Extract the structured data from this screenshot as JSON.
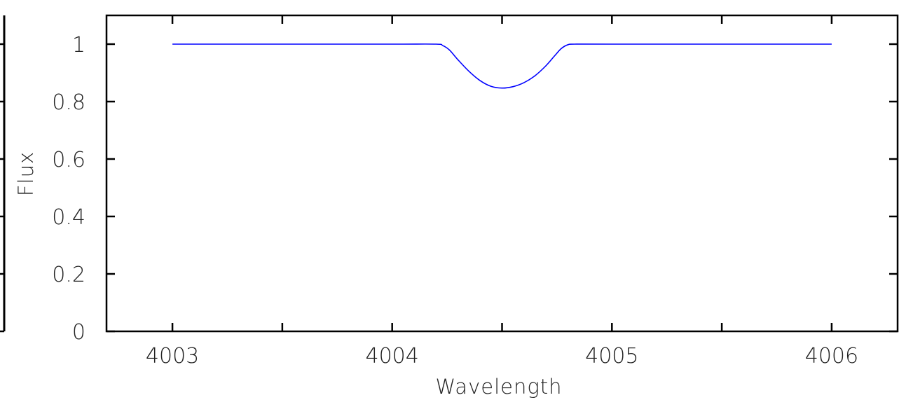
{
  "chart_data": {
    "type": "line",
    "title": "",
    "xlabel": "Wavelength",
    "ylabel": "Flux",
    "xlim": [
      4002.7,
      4006.3
    ],
    "ylim": [
      0,
      1.1
    ],
    "grid": false,
    "x_ticks": [
      4003,
      4004,
      4005,
      4006
    ],
    "x_tick_labels": [
      "4003",
      "4004",
      "4005",
      "4006"
    ],
    "x_minor_ticks": [
      4003.5,
      4004.5,
      4005.5
    ],
    "y_ticks": [
      0,
      0.2,
      0.4,
      0.6,
      0.8,
      1
    ],
    "y_tick_labels": [
      "0",
      "0.2",
      "0.4",
      "0.6",
      "0.8",
      "1"
    ],
    "series": [
      {
        "color": "#0000ff",
        "x": [
          4003.0,
          4003.5,
          4004.0,
          4004.2,
          4004.23,
          4004.26,
          4004.3,
          4004.35,
          4004.4,
          4004.45,
          4004.5,
          4004.55,
          4004.6,
          4004.65,
          4004.7,
          4004.74,
          4004.77,
          4004.8,
          4004.83,
          4005.0,
          4005.5,
          4006.0
        ],
        "y": [
          1.0,
          1.0,
          1.0,
          1.0,
          0.995,
          0.98,
          0.945,
          0.905,
          0.873,
          0.853,
          0.847,
          0.852,
          0.866,
          0.89,
          0.925,
          0.96,
          0.985,
          0.998,
          1.0,
          1.0,
          1.0,
          1.0
        ]
      }
    ]
  },
  "colors": {
    "axis": "#000000",
    "line": "#0000ff",
    "text": "#222222"
  }
}
